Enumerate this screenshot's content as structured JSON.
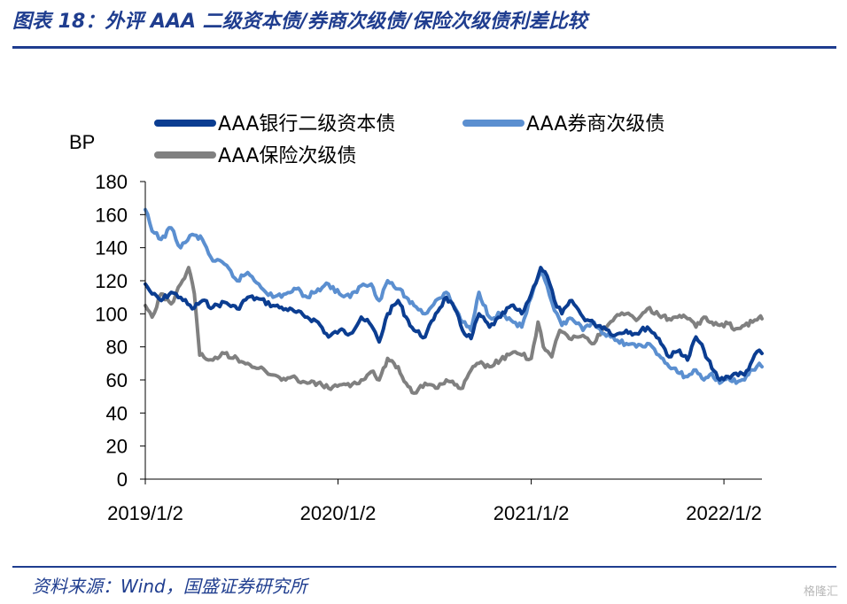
{
  "header": {
    "title": "图表 18：外评 AAA 二级资本债/券商次级债/保险次级债利差比较"
  },
  "footer": {
    "source": "资料来源：Wind，国盛证券研究所",
    "watermark": "格隆汇"
  },
  "chart_data": {
    "type": "line",
    "title": "",
    "xlabel": "",
    "ylabel": "BP",
    "ylim": [
      0,
      180
    ],
    "yticks": [
      0,
      20,
      40,
      60,
      80,
      100,
      120,
      140,
      160,
      180
    ],
    "xlim": [
      "2019-01-02",
      "2022-03-15"
    ],
    "xticks": [
      "2019/1/2",
      "2020/1/2",
      "2021/1/2",
      "2022/1/2"
    ],
    "grid": false,
    "legend": "top",
    "series": [
      {
        "name": "AAA银行二级资本债",
        "color": "#0b3d91",
        "points": [
          [
            "2019-01-02",
            118
          ],
          [
            "2019-01-15",
            112
          ],
          [
            "2019-02-01",
            108
          ],
          [
            "2019-02-20",
            113
          ],
          [
            "2019-03-10",
            110
          ],
          [
            "2019-04-01",
            103
          ],
          [
            "2019-04-20",
            108
          ],
          [
            "2019-05-10",
            104
          ],
          [
            "2019-06-01",
            107
          ],
          [
            "2019-06-25",
            103
          ],
          [
            "2019-07-15",
            110
          ],
          [
            "2019-08-05",
            109
          ],
          [
            "2019-09-01",
            105
          ],
          [
            "2019-09-25",
            103
          ],
          [
            "2019-10-15",
            101
          ],
          [
            "2019-11-05",
            98
          ],
          [
            "2019-11-25",
            95
          ],
          [
            "2019-12-15",
            86
          ],
          [
            "2020-01-05",
            90
          ],
          [
            "2020-01-25",
            88
          ],
          [
            "2020-02-15",
            98
          ],
          [
            "2020-03-05",
            93
          ],
          [
            "2020-03-20",
            83
          ],
          [
            "2020-04-05",
            100
          ],
          [
            "2020-04-25",
            108
          ],
          [
            "2020-05-10",
            98
          ],
          [
            "2020-05-25",
            90
          ],
          [
            "2020-06-15",
            86
          ],
          [
            "2020-07-05",
            100
          ],
          [
            "2020-07-25",
            110
          ],
          [
            "2020-08-10",
            103
          ],
          [
            "2020-08-25",
            90
          ],
          [
            "2020-09-10",
            85
          ],
          [
            "2020-09-25",
            100
          ],
          [
            "2020-10-15",
            92
          ],
          [
            "2020-11-05",
            98
          ],
          [
            "2020-11-25",
            105
          ],
          [
            "2020-12-15",
            100
          ],
          [
            "2021-01-02",
            112
          ],
          [
            "2021-01-20",
            128
          ],
          [
            "2021-02-01",
            123
          ],
          [
            "2021-02-15",
            108
          ],
          [
            "2021-03-01",
            100
          ],
          [
            "2021-03-20",
            108
          ],
          [
            "2021-04-10",
            98
          ],
          [
            "2021-05-01",
            94
          ],
          [
            "2021-05-20",
            92
          ],
          [
            "2021-06-10",
            87
          ],
          [
            "2021-07-01",
            90
          ],
          [
            "2021-07-20",
            88
          ],
          [
            "2021-08-10",
            92
          ],
          [
            "2021-09-01",
            85
          ],
          [
            "2021-09-20",
            74
          ],
          [
            "2021-10-10",
            78
          ],
          [
            "2021-10-25",
            72
          ],
          [
            "2021-11-10",
            86
          ],
          [
            "2021-11-25",
            78
          ],
          [
            "2021-12-10",
            67
          ],
          [
            "2021-12-25",
            60
          ],
          [
            "2022-01-10",
            62
          ],
          [
            "2022-01-25",
            64
          ],
          [
            "2022-02-10",
            63
          ],
          [
            "2022-02-25",
            72
          ],
          [
            "2022-03-10",
            78
          ],
          [
            "2022-03-15",
            76
          ]
        ]
      },
      {
        "name": "AAA券商次级债",
        "color": "#5b8fd0",
        "points": [
          [
            "2019-01-02",
            163
          ],
          [
            "2019-01-15",
            150
          ],
          [
            "2019-02-01",
            145
          ],
          [
            "2019-02-20",
            152
          ],
          [
            "2019-03-10",
            140
          ],
          [
            "2019-04-01",
            148
          ],
          [
            "2019-04-20",
            145
          ],
          [
            "2019-05-10",
            132
          ],
          [
            "2019-06-01",
            130
          ],
          [
            "2019-06-25",
            120
          ],
          [
            "2019-07-15",
            125
          ],
          [
            "2019-08-05",
            118
          ],
          [
            "2019-09-01",
            110
          ],
          [
            "2019-09-25",
            112
          ],
          [
            "2019-10-15",
            115
          ],
          [
            "2019-11-05",
            110
          ],
          [
            "2019-11-25",
            115
          ],
          [
            "2019-12-15",
            118
          ],
          [
            "2020-01-05",
            112
          ],
          [
            "2020-01-25",
            110
          ],
          [
            "2020-02-15",
            117
          ],
          [
            "2020-03-05",
            118
          ],
          [
            "2020-03-20",
            108
          ],
          [
            "2020-04-05",
            120
          ],
          [
            "2020-04-25",
            115
          ],
          [
            "2020-05-10",
            110
          ],
          [
            "2020-05-25",
            105
          ],
          [
            "2020-06-15",
            100
          ],
          [
            "2020-07-05",
            108
          ],
          [
            "2020-07-25",
            113
          ],
          [
            "2020-08-10",
            104
          ],
          [
            "2020-08-25",
            95
          ],
          [
            "2020-09-10",
            90
          ],
          [
            "2020-09-25",
            113
          ],
          [
            "2020-10-15",
            98
          ],
          [
            "2020-11-05",
            100
          ],
          [
            "2020-11-25",
            96
          ],
          [
            "2020-12-15",
            92
          ],
          [
            "2021-01-02",
            110
          ],
          [
            "2021-01-20",
            125
          ],
          [
            "2021-02-01",
            117
          ],
          [
            "2021-02-15",
            102
          ],
          [
            "2021-03-01",
            93
          ],
          [
            "2021-03-20",
            97
          ],
          [
            "2021-04-10",
            90
          ],
          [
            "2021-05-01",
            95
          ],
          [
            "2021-05-20",
            88
          ],
          [
            "2021-06-10",
            84
          ],
          [
            "2021-07-01",
            82
          ],
          [
            "2021-07-20",
            80
          ],
          [
            "2021-08-10",
            82
          ],
          [
            "2021-09-01",
            75
          ],
          [
            "2021-09-20",
            68
          ],
          [
            "2021-10-10",
            64
          ],
          [
            "2021-10-25",
            62
          ],
          [
            "2021-11-10",
            66
          ],
          [
            "2021-11-25",
            60
          ],
          [
            "2021-12-10",
            64
          ],
          [
            "2021-12-25",
            58
          ],
          [
            "2022-01-10",
            62
          ],
          [
            "2022-01-25",
            58
          ],
          [
            "2022-02-10",
            60
          ],
          [
            "2022-02-25",
            66
          ],
          [
            "2022-03-10",
            70
          ],
          [
            "2022-03-15",
            68
          ]
        ]
      },
      {
        "name": "AAA保险次级债",
        "color": "#808080",
        "points": [
          [
            "2019-01-02",
            105
          ],
          [
            "2019-01-15",
            98
          ],
          [
            "2019-02-01",
            112
          ],
          [
            "2019-02-20",
            106
          ],
          [
            "2019-03-10",
            118
          ],
          [
            "2019-03-25",
            128
          ],
          [
            "2019-04-05",
            112
          ],
          [
            "2019-04-15",
            75
          ],
          [
            "2019-05-10",
            72
          ],
          [
            "2019-06-01",
            76
          ],
          [
            "2019-06-25",
            73
          ],
          [
            "2019-07-15",
            70
          ],
          [
            "2019-08-05",
            67
          ],
          [
            "2019-09-01",
            63
          ],
          [
            "2019-09-25",
            60
          ],
          [
            "2019-10-15",
            61
          ],
          [
            "2019-11-05",
            58
          ],
          [
            "2019-11-25",
            58
          ],
          [
            "2019-12-15",
            55
          ],
          [
            "2020-01-05",
            57
          ],
          [
            "2020-01-25",
            56
          ],
          [
            "2020-02-15",
            60
          ],
          [
            "2020-03-05",
            65
          ],
          [
            "2020-03-20",
            60
          ],
          [
            "2020-04-05",
            73
          ],
          [
            "2020-04-25",
            68
          ],
          [
            "2020-05-10",
            58
          ],
          [
            "2020-05-25",
            52
          ],
          [
            "2020-06-15",
            58
          ],
          [
            "2020-07-05",
            55
          ],
          [
            "2020-07-25",
            60
          ],
          [
            "2020-08-10",
            57
          ],
          [
            "2020-08-25",
            55
          ],
          [
            "2020-09-10",
            66
          ],
          [
            "2020-09-25",
            70
          ],
          [
            "2020-10-15",
            68
          ],
          [
            "2020-11-05",
            72
          ],
          [
            "2020-11-25",
            76
          ],
          [
            "2020-12-15",
            75
          ],
          [
            "2021-01-02",
            73
          ],
          [
            "2021-01-15",
            95
          ],
          [
            "2021-01-25",
            80
          ],
          [
            "2021-02-10",
            74
          ],
          [
            "2021-02-25",
            90
          ],
          [
            "2021-03-15",
            85
          ],
          [
            "2021-04-10",
            87
          ],
          [
            "2021-05-01",
            82
          ],
          [
            "2021-05-20",
            92
          ],
          [
            "2021-06-10",
            98
          ],
          [
            "2021-07-01",
            100
          ],
          [
            "2021-07-20",
            96
          ],
          [
            "2021-08-10",
            103
          ],
          [
            "2021-09-01",
            99
          ],
          [
            "2021-09-20",
            97
          ],
          [
            "2021-10-10",
            99
          ],
          [
            "2021-10-25",
            97
          ],
          [
            "2021-11-10",
            92
          ],
          [
            "2021-11-25",
            98
          ],
          [
            "2021-12-10",
            95
          ],
          [
            "2021-12-25",
            93
          ],
          [
            "2022-01-10",
            94
          ],
          [
            "2022-01-25",
            91
          ],
          [
            "2022-02-10",
            93
          ],
          [
            "2022-02-25",
            95
          ],
          [
            "2022-03-10",
            98
          ],
          [
            "2022-03-15",
            97
          ]
        ]
      }
    ]
  }
}
